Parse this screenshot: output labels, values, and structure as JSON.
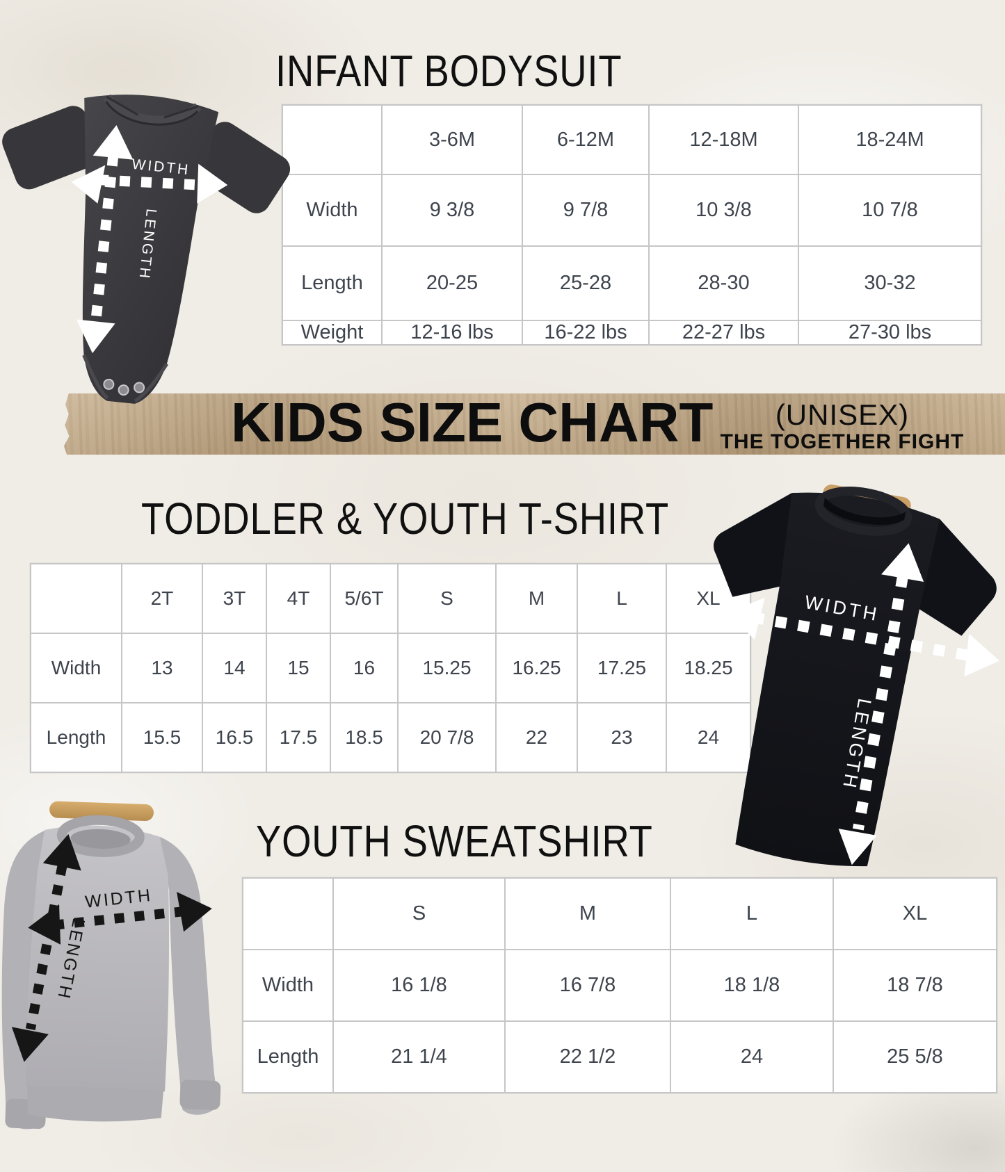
{
  "banner": {
    "title": "KIDS SIZE CHART",
    "subtitle": "(UNISEX)",
    "brand": "THE TOGETHER FIGHT"
  },
  "sections": {
    "infant": {
      "title": "INFANT BODYSUIT",
      "table": {
        "columns": [
          "",
          "3-6M",
          "6-12M",
          "12-18M",
          "18-24M"
        ],
        "rows": [
          {
            "label": "Width",
            "values": [
              "9 3/8",
              "9 7/8",
              "10 3/8",
              "10 7/8"
            ]
          },
          {
            "label": "Length",
            "values": [
              "20-25",
              "25-28",
              "28-30",
              "30-32"
            ]
          },
          {
            "label": "Weight",
            "values": [
              "12-16 lbs",
              "16-22 lbs",
              "22-27 lbs",
              "27-30 lbs"
            ]
          }
        ]
      }
    },
    "toddler": {
      "title": "TODDLER & YOUTH T-SHIRT",
      "table": {
        "columns": [
          "",
          "2T",
          "3T",
          "4T",
          "5/6T",
          "S",
          "M",
          "L",
          "XL"
        ],
        "rows": [
          {
            "label": "Width",
            "values": [
              "13",
              "14",
              "15",
              "16",
              "15.25",
              "16.25",
              "17.25",
              "18.25"
            ]
          },
          {
            "label": "Length",
            "values": [
              "15.5",
              "16.5",
              "17.5",
              "18.5",
              "20 7/8",
              "22",
              "23",
              "24"
            ]
          }
        ]
      }
    },
    "sweatshirt": {
      "title": "YOUTH SWEATSHIRT",
      "table": {
        "columns": [
          "",
          "S",
          "M",
          "L",
          "XL"
        ],
        "rows": [
          {
            "label": "Width",
            "values": [
              "16 1/8",
              "16 7/8",
              "18 1/8",
              "18 7/8"
            ]
          },
          {
            "label": "Length",
            "values": [
              "21 1/4",
              "22 1/2",
              "24",
              "25 5/8"
            ]
          }
        ]
      }
    }
  },
  "garments": {
    "bodysuit": {
      "width_label": "WIDTH",
      "length_label": "LENGTH"
    },
    "tshirt": {
      "width_label": "WIDTH",
      "length_label": "LENGTH"
    },
    "sweatshirt": {
      "width_label": "WIDTH",
      "length_label": "LENGTH"
    }
  },
  "colors": {
    "banner_tan": "#c4ad8b",
    "fabric_charcoal": "#3a393d",
    "fabric_black": "#15161b",
    "fabric_gray": "#b9b8bc",
    "hanger_wood": "#c9a166",
    "table_text": "#3e444d",
    "table_border": "#c6c6c6",
    "title_text": "#101010",
    "arrow_white": "#ffffff",
    "arrow_black": "#161616"
  }
}
